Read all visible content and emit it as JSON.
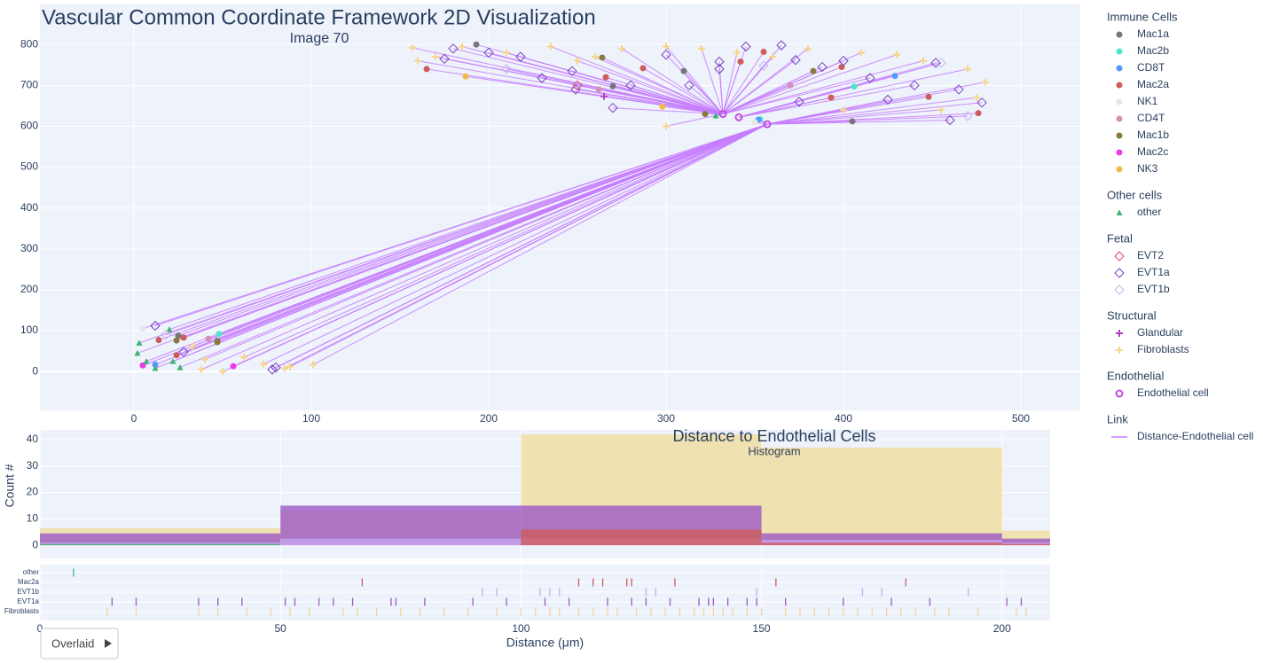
{
  "chart_data": [
    {
      "type": "scatter",
      "title": "Vascular Common Coordinate Framework 2D Visualization",
      "subtitle": "Image 70",
      "xlim": [
        -53,
        533.5
      ],
      "ylim": [
        -95,
        898
      ],
      "xticks": [
        0,
        100,
        200,
        300,
        400,
        500
      ],
      "yticks": [
        0,
        100,
        200,
        300,
        400,
        500,
        600,
        700,
        800
      ],
      "grid": true,
      "groups": [
        {
          "title": "Immune Cells",
          "series": [
            {
              "name": "Mac1a",
              "color": "#76767a",
              "marker": "circle",
              "x": [
                193,
                310,
                405,
                25,
                47,
                270
              ],
              "y": [
                800,
                735,
                612,
                88,
                75,
                698
              ]
            },
            {
              "name": "Mac2b",
              "color": "#4ee6c8",
              "marker": "circle",
              "x": [
                406,
                353,
                48
              ],
              "y": [
                697,
                617,
                92
              ]
            },
            {
              "name": "CD8T",
              "color": "#5599ff",
              "marker": "circle",
              "x": [
                429,
                352,
                12
              ],
              "y": [
                723,
                616,
                17
              ]
            },
            {
              "name": "Mac2a",
              "color": "#cd5c5c",
              "marker": "circle",
              "x": [
                165,
                266,
                287,
                342,
                355,
                393,
                448,
                476,
                24,
                14,
                28,
                399
              ],
              "y": [
                740,
                720,
                742,
                758,
                782,
                670,
                672,
                632,
                40,
                77,
                83,
                745
              ]
            },
            {
              "name": "NK1",
              "color": "#e5e5e5",
              "marker": "circle",
              "x": [
                350,
                5
              ],
              "y": [
                610,
                105
              ]
            },
            {
              "name": "CD4T",
              "color": "#d48fb6",
              "marker": "circle",
              "x": [
                262,
                42,
                370
              ],
              "y": [
                690,
                80,
                700
              ]
            },
            {
              "name": "Mac1b",
              "color": "#8b7a3e",
              "marker": "circle",
              "x": [
                264,
                383,
                322,
                24,
                47
              ],
              "y": [
                768,
                735,
                630,
                76,
                72
              ]
            },
            {
              "name": "Mac2c",
              "color": "#ee3ae8",
              "marker": "circle",
              "x": [
                5,
                56
              ],
              "y": [
                15,
                13
              ]
            },
            {
              "name": "NK3",
              "color": "#f5b84a",
              "marker": "circle",
              "x": [
                187,
                298
              ],
              "y": [
                722,
                648
              ]
            }
          ]
        },
        {
          "title": "Other cells",
          "series": [
            {
              "name": "other",
              "color": "#3cb371",
              "marker": "triangle",
              "x": [
                3,
                2,
                20,
                12,
                26,
                7,
                22,
                328
              ],
              "y": [
                70,
                45,
                103,
                8,
                10,
                25,
                25,
                626
              ]
            }
          ]
        },
        {
          "title": "Fetal",
          "series": [
            {
              "name": "EVT2",
              "color": "#e0455a",
              "marker": "diamond",
              "x": [
                250
              ],
              "y": [
                700
              ]
            },
            {
              "name": "EVT1a",
              "color": "#7b3fbf",
              "marker": "diamond",
              "x": [
                180,
                200,
                175,
                218,
                230,
                247,
                249,
                270,
                280,
                300,
                313,
                330,
                345,
                365,
                373,
                388,
                400,
                415,
                425,
                440,
                452,
                465,
                478,
                375,
                330,
                460,
                78,
                80,
                28,
                12
              ],
              "y": [
                790,
                780,
                765,
                770,
                718,
                735,
                690,
                645,
                700,
                775,
                700,
                758,
                795,
                798,
                762,
                745,
                760,
                718,
                665,
                700,
                755,
                690,
                658,
                660,
                740,
                615,
                5,
                10,
                48,
                112
              ]
            },
            {
              "name": "EVT1b",
              "color": "#c9b3f0",
              "marker": "diamond",
              "x": [
                355,
                455,
                470,
                210,
                18
              ],
              "y": [
                748,
                755,
                625,
                740,
                90
              ]
            }
          ]
        },
        {
          "title": "Structural",
          "series": [
            {
              "name": "Glandular",
              "color": "#b43fc8",
              "marker": "cross",
              "x": [
                265
              ],
              "y": [
                673
              ]
            },
            {
              "name": "Fibroblasts",
              "color": "#f7d58b",
              "marker": "cross",
              "x": [
                157,
                170,
                185,
                210,
                235,
                260,
                275,
                300,
                320,
                340,
                360,
                380,
                410,
                430,
                445,
                470,
                480,
                475,
                455,
                400,
                300,
                250,
                160,
                38,
                50,
                73,
                101,
                88,
                40,
                33,
                62,
                85
              ],
              "y": [
                792,
                770,
                795,
                780,
                795,
                770,
                790,
                795,
                790,
                780,
                770,
                790,
                780,
                775,
                760,
                740,
                708,
                670,
                640,
                640,
                600,
                760,
                760,
                5,
                0,
                18,
                17,
                12,
                30,
                62,
                35,
                8
              ]
            }
          ]
        },
        {
          "title": "Endothelial",
          "series": [
            {
              "name": "Endothelial cell",
              "color": "#c050e0",
              "marker": "circle-open",
              "x": [
                332,
                341,
                357
              ],
              "y": [
                630,
                622,
                605
              ]
            }
          ]
        },
        {
          "title": "Link",
          "series": [
            {
              "name": "Distance-Endothelial cell",
              "color": "#c77dff",
              "marker": "line"
            }
          ]
        }
      ]
    },
    {
      "type": "histogram",
      "title": "Distance to Endothelial Cells",
      "subtitle": "Histogram",
      "ylabel": "Count #",
      "xlim": [
        0,
        210
      ],
      "ylim": [
        -5,
        43.7
      ],
      "xticks": [
        0,
        50,
        100,
        150,
        200
      ],
      "yticks": [
        0,
        10,
        20,
        30,
        40
      ],
      "grid": true,
      "bins": [
        0,
        50,
        100,
        150,
        200,
        250
      ],
      "series": [
        {
          "color": "#efdc9e",
          "values": [
            6.5,
            13,
            42,
            37,
            5.5
          ]
        },
        {
          "color": "#9b59c6",
          "values": [
            4.5,
            15,
            15,
            4.5,
            2.5
          ]
        },
        {
          "color": "#c9a6f2",
          "values": [
            1,
            2.5,
            2.5,
            2,
            1
          ]
        },
        {
          "color": "#cd5c5c",
          "values": [
            0,
            0,
            6,
            1,
            0.5
          ]
        },
        {
          "color": "#3cb371",
          "values": [
            0.5,
            0,
            0,
            0,
            0
          ]
        }
      ]
    },
    {
      "type": "rug",
      "xlabel": "Distance (μm)",
      "xlim": [
        0,
        210
      ],
      "xticks": [
        0,
        50,
        100,
        150,
        200
      ],
      "grid": true,
      "series": [
        {
          "name": "other",
          "color": "#3cb371",
          "values": [
            7
          ]
        },
        {
          "name": "Mac2a",
          "color": "#cd5c5c",
          "values": [
            67,
            112,
            115,
            117,
            122,
            123,
            132,
            153,
            180
          ]
        },
        {
          "name": "EVT1b",
          "color": "#c8aef0",
          "values": [
            92,
            95,
            104,
            106,
            108,
            126,
            128,
            149,
            171,
            175,
            193
          ]
        },
        {
          "name": "EVT1a",
          "color": "#9b59c6",
          "values": [
            15,
            20,
            33,
            37,
            42,
            51,
            53,
            58,
            61,
            65,
            73,
            74,
            80,
            90,
            97,
            105,
            110,
            118,
            123,
            126,
            131,
            137,
            139,
            140,
            143,
            147,
            149,
            155,
            167,
            177,
            185,
            201,
            204
          ]
        },
        {
          "name": "Fibroblasts",
          "color": "#f2d49a",
          "values": [
            14,
            20,
            33,
            37,
            43,
            48,
            52,
            56,
            63,
            66,
            70,
            75,
            79,
            84,
            89,
            95,
            100,
            103,
            106,
            108,
            112,
            115,
            118,
            120,
            124,
            127,
            130,
            133,
            136,
            138,
            140,
            142,
            144,
            147,
            150,
            155,
            158,
            161,
            164,
            167,
            170,
            173,
            176,
            179,
            182,
            186,
            189,
            195,
            203,
            205
          ]
        }
      ]
    }
  ],
  "controls": {
    "button": "Overlaid"
  }
}
